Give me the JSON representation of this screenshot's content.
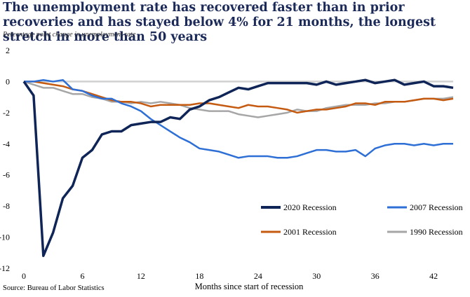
{
  "chart_data": {
    "type": "line",
    "title": "The unemployment rate has recovered faster than in prior recoveries and has stayed below 4% for 21 months, the longest stretch in more than 50 years",
    "subtitle": "Percentage point change in unemployment rate",
    "xlabel": "Months since start of recession",
    "ylabel": "",
    "source": "Source: Bureau of Labor Statistics",
    "xlim": [
      0,
      44
    ],
    "ylim": [
      -12,
      2
    ],
    "xticks": [
      0,
      6,
      12,
      18,
      24,
      30,
      36,
      42
    ],
    "yticks": [
      2,
      0,
      -2,
      -4,
      -6,
      -8,
      -10,
      -12
    ],
    "grid": false,
    "zero_line": true,
    "legend_position": "lower-right",
    "series": [
      {
        "name": "2020 Recession",
        "color": "#0f2557",
        "values": [
          0,
          -0.9,
          -11.2,
          -9.7,
          -7.5,
          -6.7,
          -4.9,
          -4.4,
          -3.4,
          -3.2,
          -3.2,
          -2.8,
          -2.7,
          -2.6,
          -2.6,
          -2.3,
          -2.4,
          -1.8,
          -1.6,
          -1.2,
          -1.0,
          -0.7,
          -0.4,
          -0.5,
          -0.3,
          -0.1,
          -0.1,
          -0.1,
          -0.1,
          -0.1,
          -0.2,
          0.0,
          -0.2,
          -0.1,
          0.0,
          0.1,
          -0.1,
          0.0,
          0.1,
          -0.2,
          -0.1,
          0.0,
          -0.3,
          -0.3,
          -0.4
        ]
      },
      {
        "name": "2007 Recession",
        "color": "#2e6fd6",
        "values": [
          0,
          0.0,
          0.1,
          0.0,
          0.1,
          -0.5,
          -0.6,
          -0.9,
          -1.1,
          -1.1,
          -1.4,
          -1.6,
          -1.9,
          -2.4,
          -2.8,
          -3.2,
          -3.6,
          -3.9,
          -4.3,
          -4.4,
          -4.5,
          -4.7,
          -4.9,
          -4.8,
          -4.8,
          -4.8,
          -4.9,
          -4.9,
          -4.8,
          -4.6,
          -4.4,
          -4.4,
          -4.5,
          -4.5,
          -4.4,
          -4.8,
          -4.3,
          -4.1,
          -4.0,
          -4.0,
          -4.1,
          -4.0,
          -4.1,
          -4.0,
          -4.0
        ]
      },
      {
        "name": "2001 Recession",
        "color": "#c55a11",
        "values": [
          0,
          0.0,
          -0.1,
          -0.2,
          -0.3,
          -0.5,
          -0.6,
          -0.8,
          -1.0,
          -1.2,
          -1.3,
          -1.3,
          -1.4,
          -1.6,
          -1.5,
          -1.5,
          -1.5,
          -1.5,
          -1.4,
          -1.4,
          -1.5,
          -1.6,
          -1.7,
          -1.5,
          -1.6,
          -1.6,
          -1.7,
          -1.8,
          -2.0,
          -1.9,
          -1.8,
          -1.8,
          -1.7,
          -1.6,
          -1.4,
          -1.4,
          -1.5,
          -1.3,
          -1.3,
          -1.3,
          -1.2,
          -1.1,
          -1.1,
          -1.2,
          -1.1
        ]
      },
      {
        "name": "1990 Recession",
        "color": "#a6a6a6",
        "values": [
          0,
          -0.2,
          -0.4,
          -0.4,
          -0.6,
          -0.8,
          -0.8,
          -1.0,
          -1.1,
          -1.3,
          -1.3,
          -1.4,
          -1.3,
          -1.4,
          -1.3,
          -1.4,
          -1.5,
          -1.7,
          -1.8,
          -1.9,
          -1.9,
          -1.9,
          -2.1,
          -2.2,
          -2.3,
          -2.2,
          -2.1,
          -2.0,
          -1.8,
          -1.9,
          -1.9,
          -1.7,
          -1.6,
          -1.5,
          -1.5,
          -1.5,
          -1.4,
          -1.4,
          -1.3,
          -1.3,
          -1.2,
          -1.1,
          -1.1,
          -1.1,
          -1.0
        ]
      }
    ]
  }
}
